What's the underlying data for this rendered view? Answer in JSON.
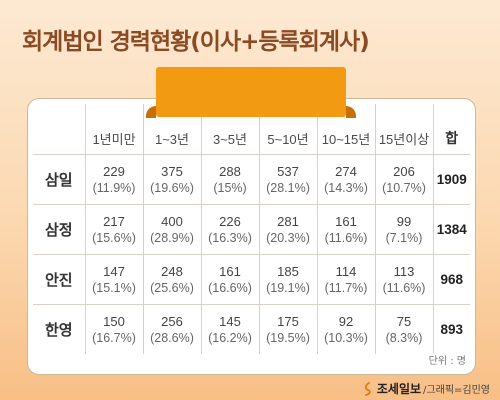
{
  "title": "회계법인 경력현황(이사+등록회계사)",
  "chart_data": {
    "type": "table",
    "columns": [
      "1년미만",
      "1~3년",
      "3~5년",
      "5~10년",
      "10~15년",
      "15년이상"
    ],
    "total_label": "합",
    "rows": [
      {
        "name": "삼일",
        "counts": [
          229,
          375,
          288,
          537,
          274,
          206
        ],
        "percents": [
          "(11.9%)",
          "(19.6%)",
          "(15%)",
          "(28.1%)",
          "(14.3%)",
          "(10.7%)"
        ],
        "total": 1909
      },
      {
        "name": "삼정",
        "counts": [
          217,
          400,
          226,
          281,
          161,
          99
        ],
        "percents": [
          "(15.6%)",
          "(28.9%)",
          "(16.3%)",
          "(20.3%)",
          "(11.6%)",
          "(7.1%)"
        ],
        "total": 1384
      },
      {
        "name": "안진",
        "counts": [
          147,
          248,
          161,
          185,
          114,
          113
        ],
        "percents": [
          "(15.1%)",
          "(25.6%)",
          "(16.6%)",
          "(19.1%)",
          "(11.7%)",
          "(11.6%)"
        ],
        "total": 968
      },
      {
        "name": "한영",
        "counts": [
          150,
          256,
          145,
          175,
          92,
          75
        ],
        "percents": [
          "(16.7%)",
          "(28.6%)",
          "(16.2%)",
          "(19.5%)",
          "(10.3%)",
          "(8.3%)"
        ],
        "total": 893
      }
    ]
  },
  "unit_note": "단위 : 명",
  "footer": {
    "logo_text": "조세일보",
    "credit": "/그래픽=김민영"
  },
  "colors": {
    "title": "#8a4a24",
    "ribbon": "#f29a12",
    "background_top": "#fde9d3",
    "background_bottom": "#f8bf86"
  }
}
